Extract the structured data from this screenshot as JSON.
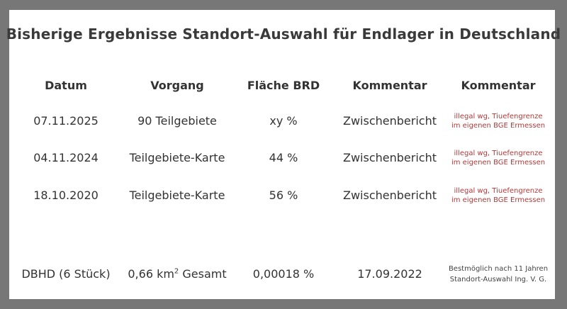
{
  "title": "Bisherige Ergebnisse Standort-Auswahl für Endlager in Deutschland",
  "headers": [
    "Datum",
    "Vorgang",
    "Fläche BRD",
    "Kommentar",
    "Kommentar"
  ],
  "rows": [
    {
      "datum": "07.11.2025",
      "vorgang": "90  Teilgebiete",
      "flaeche": "xy %",
      "kommentar": "Zwischenbericht",
      "kommentar2_line1": "illegal wg, Tiuefengrenze",
      "kommentar2_line2": "im eigenen BGE Ermessen"
    },
    {
      "datum": "04.11.2024",
      "vorgang": "Teilgebiete-Karte",
      "flaeche": "44 %",
      "kommentar": "Zwischenbericht",
      "kommentar2_line1": "illegal wg, Tiuefengrenze",
      "kommentar2_line2": "im eigenen BGE Ermessen"
    },
    {
      "datum": "18.10.2020",
      "vorgang": "Teilgebiete-Karte",
      "flaeche": "56 %",
      "kommentar": "Zwischenbericht",
      "kommentar2_line1": "illegal wg, Tiuefengrenze",
      "kommentar2_line2": "im eigenen BGE Ermessen"
    }
  ],
  "footer": {
    "datum": "DBHD (6 Stück)",
    "vorgang_value": "0,66 km",
    "vorgang_sup": "2",
    "vorgang_suffix": " Gesamt",
    "flaeche": "0,00018 %",
    "kommentar": "17.09.2022",
    "note_line1": "Bestmöglich nach 11 Jahren",
    "note_line2": "Standort-Auswahl Ing. V. G."
  },
  "colors": {
    "background": "#777777",
    "panel": "#ffffff",
    "comment_red": "#b03a3a"
  }
}
